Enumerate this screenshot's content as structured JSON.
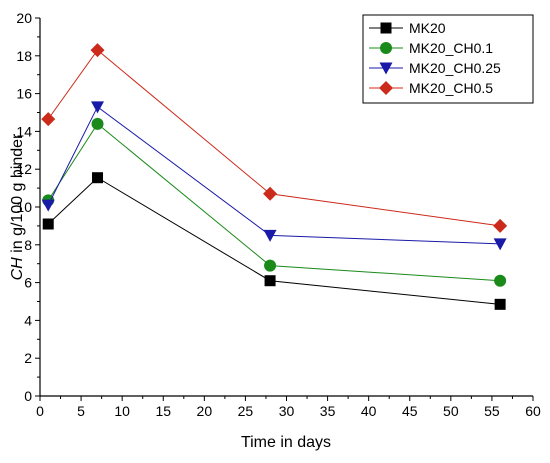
{
  "chart_data": {
    "type": "line",
    "xlabel": "Time in days",
    "ylabel_italic": "CH",
    "ylabel_rest": " in g/100 g binder",
    "xlim": [
      0,
      60
    ],
    "ylim": [
      0,
      20
    ],
    "xticks": [
      "0",
      "5",
      "10",
      "15",
      "20",
      "25",
      "30",
      "35",
      "40",
      "45",
      "50",
      "55",
      "60"
    ],
    "yticks": [
      "0",
      "2",
      "4",
      "6",
      "8",
      "10",
      "12",
      "14",
      "16",
      "18",
      "20"
    ],
    "grid": false,
    "legend_position": "top-right",
    "series": [
      {
        "name": "MK20",
        "color": "#000000",
        "marker": "square",
        "x": [
          1,
          7,
          28,
          56
        ],
        "y": [
          9.1,
          11.55,
          6.1,
          4.85
        ]
      },
      {
        "name": "MK20_CH0.1",
        "color": "#1a8a1a",
        "marker": "circle",
        "x": [
          1,
          7,
          28,
          56
        ],
        "y": [
          10.35,
          14.4,
          6.9,
          6.1
        ]
      },
      {
        "name": "MK20_CH0.25",
        "color": "#1a1aa8",
        "marker": "triangle-down",
        "x": [
          1,
          7,
          28,
          56
        ],
        "y": [
          10.1,
          15.3,
          8.5,
          8.05
        ]
      },
      {
        "name": "MK20_CH0.5",
        "color": "#cc2a1a",
        "marker": "diamond",
        "x": [
          1,
          7,
          28,
          56
        ],
        "y": [
          14.65,
          18.3,
          10.7,
          9.0
        ]
      }
    ]
  }
}
